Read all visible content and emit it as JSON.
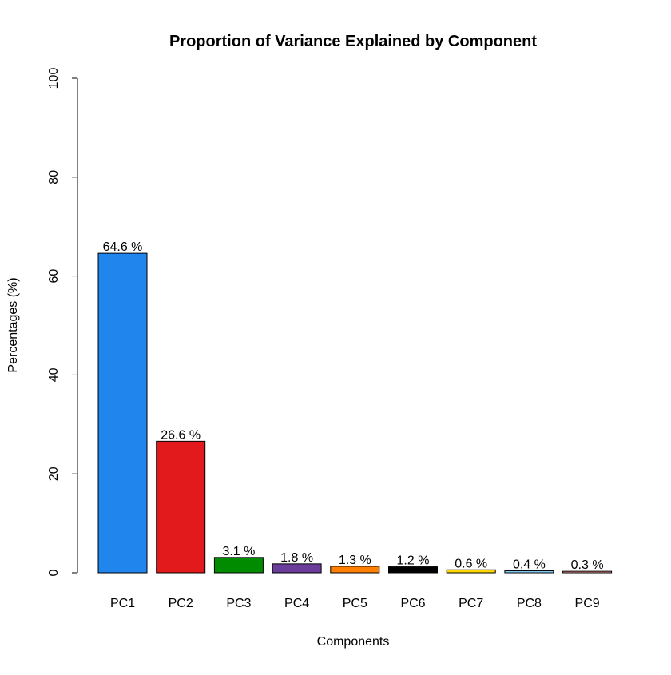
{
  "chart_data": {
    "type": "bar",
    "title": "Proportion of Variance Explained by Component",
    "xlabel": "Components",
    "ylabel": "Percentages (%)",
    "ylim": [
      0,
      100
    ],
    "y_ticks": [
      "0",
      "20",
      "40",
      "60",
      "80",
      "100"
    ],
    "categories": [
      "PC1",
      "PC2",
      "PC3",
      "PC4",
      "PC5",
      "PC6",
      "PC7",
      "PC8",
      "PC9"
    ],
    "values": [
      64.6,
      26.6,
      3.1,
      1.8,
      1.3,
      1.2,
      0.6,
      0.4,
      0.3
    ],
    "data_labels": [
      "64.6 %",
      "26.6 %",
      "3.1 %",
      "1.8 %",
      "1.3 %",
      "1.2 %",
      "0.6 %",
      "0.4 %",
      "0.3 %"
    ],
    "colors": [
      "#2185EE",
      "#E31A1C",
      "#008B00",
      "#6A3D9A",
      "#FF7F00",
      "#000000",
      "#FFD700",
      "#87CEFA",
      "#FB9A99"
    ],
    "grid": false,
    "legend": "none"
  }
}
